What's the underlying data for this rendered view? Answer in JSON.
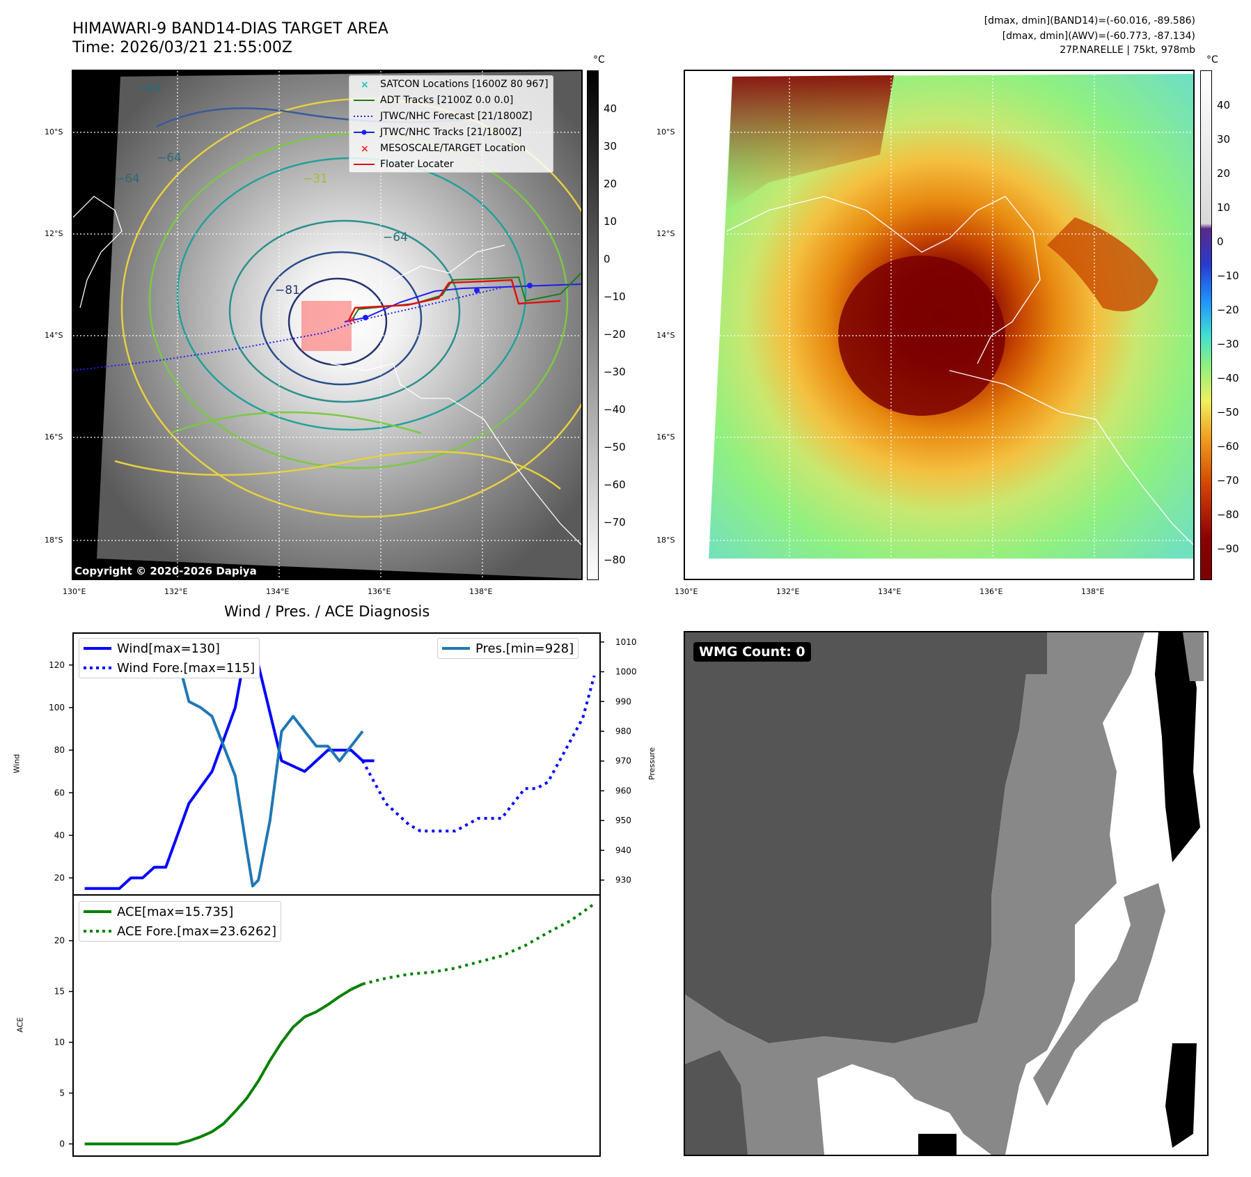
{
  "header": {
    "title_line1": "HIMAWARI-9 BAND14-DIAS TARGET AREA",
    "title_line2": "Time: 2026/03/21 21:55:00Z",
    "info_line1": "[dmax, dmin](BAND14)=(-60.016, -89.586)",
    "info_line2": "[dmax, dmin](AWV)=(-60.773, -87.134)",
    "info_line3": "27P.NARELLE | 75kt, 978mb"
  },
  "map_axes": {
    "lat_labels": [
      "10°S",
      "12°S",
      "14°S",
      "16°S",
      "18°S"
    ],
    "lon_labels": [
      "130°E",
      "132°E",
      "134°E",
      "136°E",
      "138°E"
    ]
  },
  "colorbar_gray": {
    "unit": "°C",
    "ticks": [
      "40",
      "30",
      "20",
      "10",
      "0",
      "−10",
      "−20",
      "−30",
      "−40",
      "−50",
      "−60",
      "−70",
      "−80"
    ]
  },
  "colorbar_color": {
    "unit": "°C",
    "ticks": [
      "40",
      "30",
      "20",
      "10",
      "0",
      "−10",
      "−20",
      "−30",
      "−40",
      "−50",
      "−60",
      "−70",
      "−80",
      "−90"
    ]
  },
  "map_legend": {
    "items": [
      {
        "label": "SATCON Locations [1600Z 80 967]",
        "color": "#17c4c4"
      },
      {
        "label": "ADT Tracks [2100Z 0.0 0.0]",
        "color": "#1a7d1a"
      },
      {
        "label": "JTWC/NHC Forecast [21/1800Z]",
        "color": "#1f1ff0"
      },
      {
        "label": "JTWC/NHC Tracks [21/1800Z]",
        "color": "#1f1ff0"
      },
      {
        "label": "MESOSCALE/TARGET Location",
        "color": "#ff2020"
      },
      {
        "label": "Floater Locater",
        "color": "#e01010"
      }
    ]
  },
  "contour_labels": [
    "−64",
    "−64",
    "−64",
    "−81",
    "−31",
    "−64"
  ],
  "copyright": "Copyright © 2020-2026 Dapiya",
  "wmg": {
    "label": "WMG Count: 0"
  },
  "chart_data": [
    {
      "type": "line",
      "title": "Wind / Pres. / ACE Diagnosis",
      "ylabel": "Wind",
      "ylabel_right": "Pressure",
      "ylim": [
        12,
        135
      ],
      "ylim_right": [
        925,
        1013
      ],
      "yticks": [
        20,
        40,
        60,
        80,
        100,
        120
      ],
      "yticks_right": [
        930,
        940,
        950,
        960,
        970,
        980,
        990,
        1000,
        1010
      ],
      "series": [
        {
          "name": "Wind[max=130]",
          "color": "#0000ff",
          "style": "solid",
          "x": [
            0,
            3,
            4,
            5,
            6,
            7,
            9,
            11,
            12,
            13,
            14,
            15,
            17,
            19,
            20,
            21,
            23,
            24,
            25
          ],
          "values": [
            15,
            15,
            20,
            20,
            25,
            25,
            55,
            70,
            85,
            100,
            130,
            120,
            75,
            70,
            75,
            80,
            80,
            75,
            75
          ]
        },
        {
          "name": "Wind Fore.[max=115]",
          "color": "#0000ff",
          "style": "dotted",
          "x": [
            24,
            26,
            27,
            28,
            29,
            30,
            31,
            32,
            33,
            34,
            35,
            36,
            37,
            38,
            39,
            40,
            41,
            42,
            43,
            44
          ],
          "values": [
            75,
            55,
            50,
            45,
            42,
            42,
            42,
            42,
            45,
            48,
            48,
            48,
            55,
            62,
            62,
            65,
            75,
            85,
            95,
            115
          ]
        },
        {
          "name": "Pres.[min=928]",
          "color": "#1f77b4",
          "style": "solid",
          "axis": "right",
          "x": [
            0,
            2,
            4,
            6,
            8,
            9,
            10,
            11,
            12,
            13,
            14,
            14.5,
            15,
            16,
            17,
            18,
            19,
            20,
            21,
            22,
            23,
            24
          ],
          "values": [
            1010,
            1010,
            1005,
            1005,
            1005,
            990,
            988,
            985,
            975,
            965,
            940,
            928,
            930,
            950,
            980,
            985,
            980,
            975,
            975,
            970,
            975,
            980
          ]
        }
      ]
    },
    {
      "type": "line",
      "ylabel": "ACE",
      "ylim": [
        -1.2,
        24.5
      ],
      "yticks": [
        0,
        5,
        10,
        15,
        20
      ],
      "series": [
        {
          "name": "ACE[max=15.735]",
          "color": "#008000",
          "style": "solid",
          "x": [
            0,
            2,
            4,
            6,
            8,
            9,
            10,
            11,
            12,
            13,
            14,
            15,
            16,
            17,
            18,
            19,
            20,
            21,
            22,
            23,
            24
          ],
          "values": [
            0,
            0,
            0,
            0,
            0,
            0.3,
            0.7,
            1.2,
            2,
            3.2,
            4.5,
            6.2,
            8.2,
            10,
            11.5,
            12.5,
            13,
            13.7,
            14.5,
            15.2,
            15.735
          ]
        },
        {
          "name": "ACE Fore.[max=23.6262]",
          "color": "#008000",
          "style": "dotted",
          "x": [
            24,
            26,
            28,
            30,
            32,
            34,
            36,
            38,
            40,
            42,
            44
          ],
          "values": [
            15.735,
            16.3,
            16.7,
            16.9,
            17.3,
            17.9,
            18.5,
            19.5,
            20.8,
            22,
            23.6262
          ]
        }
      ]
    }
  ]
}
